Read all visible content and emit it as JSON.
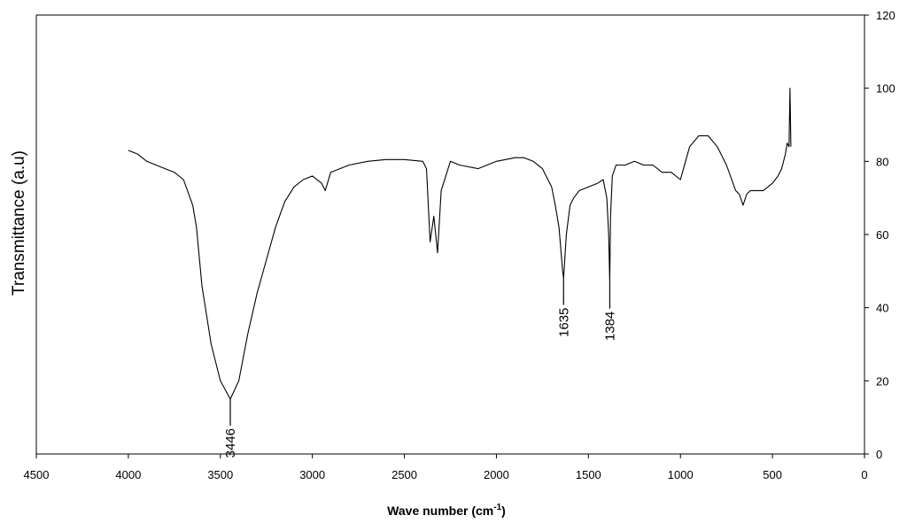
{
  "chart_data": {
    "type": "line",
    "xlabel": "Wave number (cm",
    "xlabel_superscript": "-1",
    "xlabel_close": ")",
    "ylabel": "Transmittance (a.u)",
    "xlim": [
      4500,
      0
    ],
    "ylim": [
      0,
      120
    ],
    "x_ticks": [
      4500,
      4000,
      3500,
      3000,
      2500,
      2000,
      1500,
      1000,
      500,
      0
    ],
    "y_ticks": [
      0,
      20,
      40,
      60,
      80,
      100,
      120
    ],
    "y_axis_side": "right",
    "x_reversed": true,
    "grid": false,
    "series": [
      {
        "x": [
          4000,
          3950,
          3900,
          3850,
          3800,
          3750,
          3700,
          3650,
          3630,
          3600,
          3550,
          3500,
          3446,
          3400,
          3350,
          3300,
          3250,
          3200,
          3150,
          3100,
          3050,
          3000,
          2950,
          2930,
          2900,
          2850,
          2800,
          2700,
          2600,
          2500,
          2400,
          2380,
          2360,
          2340,
          2320,
          2300,
          2250,
          2200,
          2100,
          2000,
          1950,
          1900,
          1850,
          1800,
          1750,
          1700,
          1680,
          1660,
          1640,
          1635,
          1620,
          1600,
          1580,
          1550,
          1500,
          1450,
          1420,
          1400,
          1390,
          1384,
          1380,
          1370,
          1350,
          1300,
          1250,
          1200,
          1150,
          1100,
          1050,
          1000,
          950,
          900,
          850,
          800,
          750,
          700,
          680,
          660,
          640,
          620,
          600,
          550,
          500,
          470,
          450,
          430,
          420,
          410,
          405,
          400
        ],
        "y": [
          83,
          82,
          80,
          79,
          78,
          77,
          75,
          68,
          62,
          46,
          30,
          20,
          15,
          20,
          33,
          44,
          53,
          62,
          69,
          73,
          75,
          76,
          74,
          72,
          77,
          78,
          79,
          80,
          80.5,
          80.5,
          80,
          78,
          58,
          65,
          55,
          72,
          80,
          79,
          78,
          80,
          80.5,
          81,
          81,
          80,
          78,
          73,
          68,
          62,
          50,
          48,
          60,
          68,
          70,
          72,
          73,
          74,
          75,
          70,
          60,
          47,
          65,
          76,
          79,
          79,
          80,
          79,
          79,
          77,
          77,
          75,
          84,
          87,
          87,
          84,
          79,
          72,
          71,
          68,
          71,
          72,
          72,
          72,
          74,
          76,
          78,
          82,
          85,
          84,
          100,
          84
        ]
      }
    ],
    "annotations": [
      {
        "label": "3446",
        "x": 3446,
        "y": 15
      },
      {
        "label": "1635",
        "x": 1635,
        "y": 48
      },
      {
        "label": "1384",
        "x": 1384,
        "y": 47
      }
    ]
  }
}
